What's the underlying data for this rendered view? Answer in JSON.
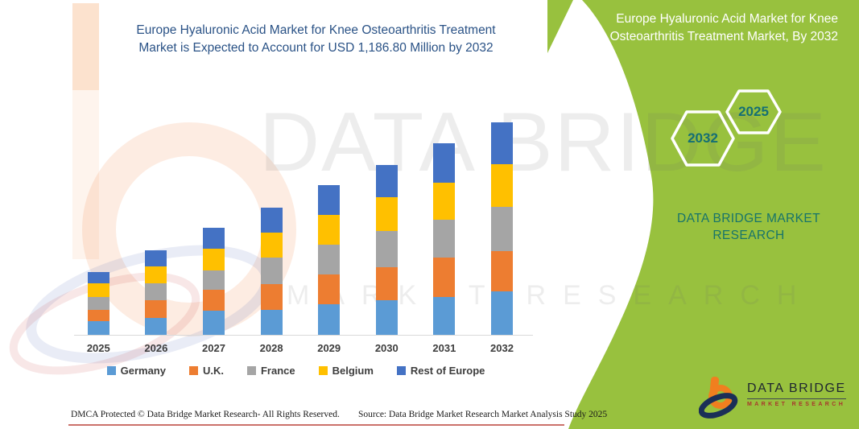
{
  "header": {
    "title_line1": "Europe Hyaluronic Acid Market for Knee Osteoarthritis Treatment",
    "title_line2": "Market is Expected to Account for USD 1,186.80 Million by 2032"
  },
  "chart_data": {
    "type": "bar",
    "subtype": "stacked-vertical",
    "unit": "USD Million",
    "categories": [
      "2025",
      "2026",
      "2027",
      "2028",
      "2029",
      "2030",
      "2031",
      "2032"
    ],
    "series": [
      {
        "name": "Germany",
        "color": "#5b9bd5",
        "values": [
          75,
          94,
          133,
          139,
          171,
          193,
          211,
          244
        ]
      },
      {
        "name": "U.K.",
        "color": "#ed7d31",
        "values": [
          64,
          99,
          117,
          144,
          166,
          185,
          218,
          224
        ]
      },
      {
        "name": "France",
        "color": "#a5a5a5",
        "values": [
          70,
          94,
          111,
          147,
          167,
          203,
          214,
          244
        ]
      },
      {
        "name": "Belgium",
        "color": "#ffc000",
        "values": [
          79,
          97,
          121,
          139,
          167,
          187,
          207,
          240
        ]
      },
      {
        "name": "Rest of Europe",
        "color": "#4472c4",
        "values": [
          63,
          88,
          117,
          141,
          163,
          178,
          221,
          234.8
        ]
      }
    ],
    "totals_estimated": [
      351,
      472,
      599,
      710,
      834,
      946,
      1071,
      1186.8
    ],
    "title": "Europe Hyaluronic Acid Market for Knee Osteoarthritis Treatment Market is Expected to Account for USD 1,186.80 Million by 2032",
    "xlabel": "",
    "ylabel": "",
    "ylim": [
      0,
      1300
    ],
    "grid": false,
    "legend_position": "bottom"
  },
  "side_panel": {
    "title": "Europe Hyaluronic Acid Market for Knee Osteoarthritis Treatment Market, By 2032",
    "hexagons": [
      "2032",
      "2025"
    ],
    "brand_line1": "DATA BRIDGE MARKET",
    "brand_line2": "RESEARCH",
    "colors": {
      "panel_green": "#98c13e",
      "teal_text": "#17746a",
      "hex_number": "#156f74"
    }
  },
  "logo": {
    "name": "DATA BRIDGE",
    "sub": "MARKET RESEARCH",
    "icon": "data-bridge-b-icon",
    "colors": {
      "orange": "#f07f1f",
      "navy": "#1b2f57",
      "red": "#a8372c"
    }
  },
  "watermark": {
    "line1": "DATA BRIDGE",
    "line2": "MARKET RESEARCH"
  },
  "footer": {
    "left": "DMCA Protected © Data Bridge Market Research-  All Rights Reserved.",
    "right": "Source: Data Bridge Market Research  Market Analysis Study 2025"
  }
}
